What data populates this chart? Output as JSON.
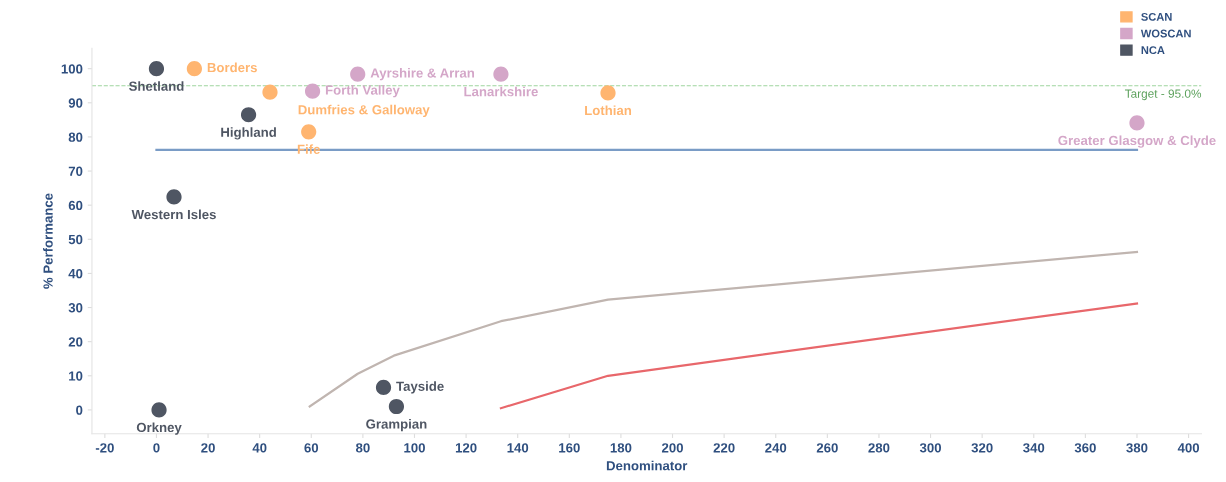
{
  "chart_data": {
    "type": "scatter",
    "xlabel": "Denominator",
    "ylabel": "% Performance",
    "marker": "circle",
    "legend": "top right",
    "grid": false,
    "xlim": [
      -25,
      405
    ],
    "xticks": [
      -20,
      0,
      20,
      40,
      60,
      80,
      100,
      120,
      140,
      160,
      180,
      200,
      220,
      240,
      260,
      280,
      300,
      320,
      340,
      360,
      380,
      400
    ],
    "ylim": [
      -7,
      106
    ],
    "yticks": [
      0,
      10,
      20,
      30,
      40,
      50,
      60,
      70,
      80,
      90,
      100
    ],
    "series": [
      {
        "name": "SCAN",
        "color": "#ffb570",
        "x": [
          14.7,
          44,
          59,
          175
        ],
        "values": [
          100,
          93.1,
          81.5,
          92.9
        ]
      },
      {
        "name": "WOSCAN",
        "color": "#d4a6c8",
        "x": [
          78,
          60.5,
          133.5,
          380
        ],
        "values": [
          98.4,
          93.4,
          98.4,
          84.1
        ]
      },
      {
        "name": "NCA",
        "color": "#4f5663",
        "x": [
          0,
          35.7,
          6.8,
          1,
          88,
          93
        ],
        "values": [
          100,
          86.5,
          62.4,
          0,
          6.6,
          1
        ]
      },
      {
        "type": "line",
        "marker": "none",
        "color": "#c0b5b0",
        "x": [
          59.4,
          78,
          92,
          133.5,
          175,
          380
        ],
        "values": [
          1,
          10.6,
          15.9,
          26,
          32.3,
          46.3
        ]
      },
      {
        "type": "line",
        "marker": "none",
        "color": "#e8676b",
        "x": [
          133.5,
          175,
          380
        ],
        "values": [
          0.5,
          10,
          31.2
        ]
      },
      {
        "type": "line",
        "marker": "none",
        "color": "#7a9cc6",
        "x": [
          0,
          380
        ],
        "values": [
          76.2,
          76.2
        ]
      }
    ],
    "ref_lines": [
      {
        "axis": "y",
        "value": 95,
        "label": "Target - 95.0%",
        "color": "#9fd59f",
        "line_style": "dashed"
      }
    ],
    "annotations": [
      {
        "text": "Shetland",
        "x": 0,
        "y": 100
      },
      {
        "text": "Borders",
        "x": 14.7,
        "y": 100
      },
      {
        "text": "Dumfries & Galloway",
        "x": 44,
        "y": 93.1
      },
      {
        "text": "Forth Valley",
        "x": 60.5,
        "y": 93.4
      },
      {
        "text": "Ayrshire & Arran",
        "x": 78,
        "y": 98.4
      },
      {
        "text": "Highland",
        "x": 35.7,
        "y": 86.5
      },
      {
        "text": "Fife",
        "x": 59,
        "y": 81.5
      },
      {
        "text": "Lanarkshire",
        "x": 133.5,
        "y": 98.4
      },
      {
        "text": "Lothian",
        "x": 175,
        "y": 92.9
      },
      {
        "text": "Greater Glasgow & Clyde",
        "x": 380,
        "y": 84.1
      },
      {
        "text": "Western Isles",
        "x": 6.8,
        "y": 62.4
      },
      {
        "text": "Orkney",
        "x": 1,
        "y": 0
      },
      {
        "text": "Tayside",
        "x": 88,
        "y": 6.6
      },
      {
        "text": "Grampian",
        "x": 93,
        "y": 1
      }
    ]
  }
}
